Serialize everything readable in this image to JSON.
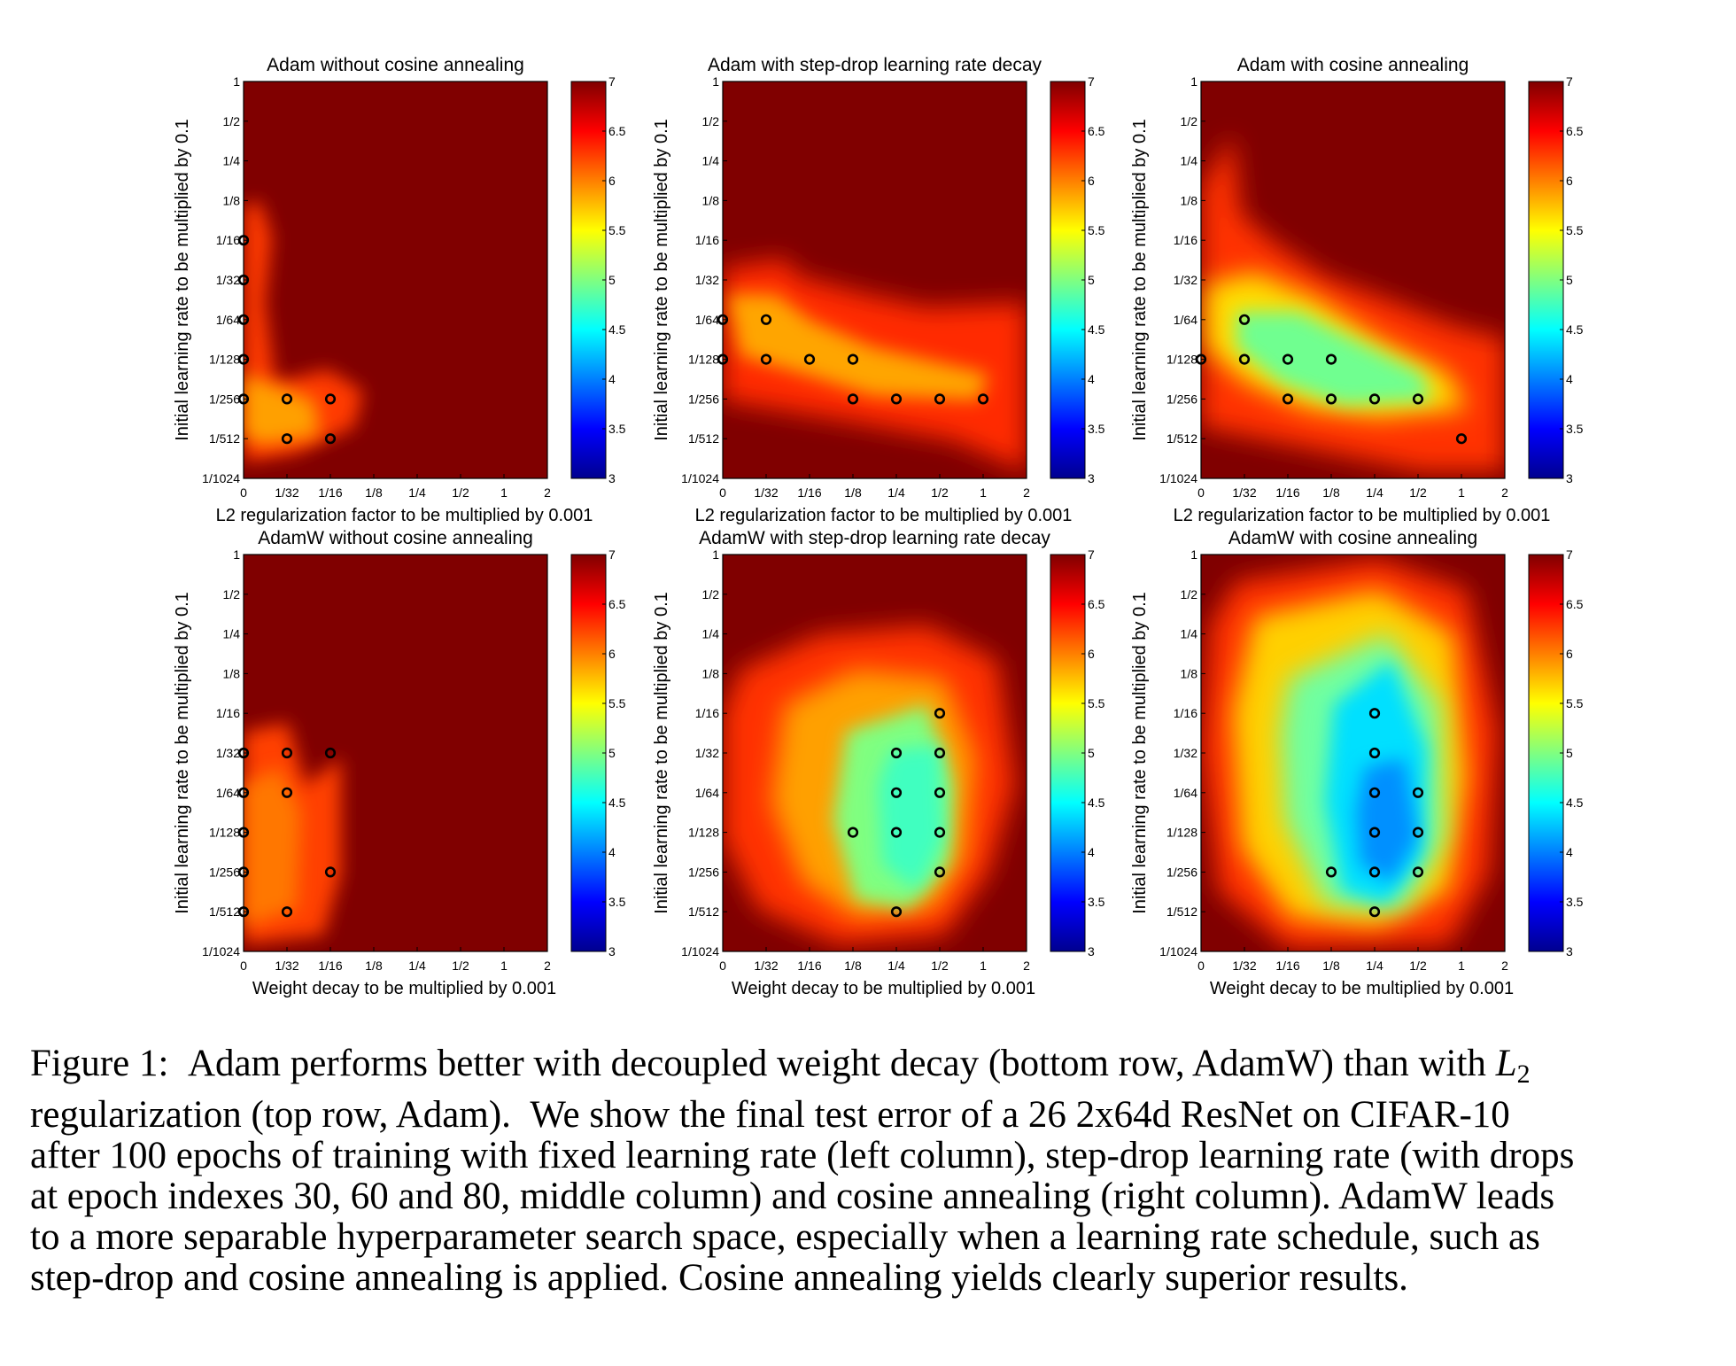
{
  "figure": {
    "y_ticks": [
      "1",
      "1/2",
      "1/4",
      "1/8",
      "1/16",
      "1/32",
      "1/64",
      "1/128",
      "1/256",
      "1/512",
      "1/1024"
    ],
    "x_ticks": [
      "0",
      "1/32",
      "1/16",
      "1/8",
      "1/4",
      "1/2",
      "1",
      "2"
    ],
    "y_label": "Initial learning rate to be multiplied by 0.1",
    "colorbar": {
      "min": 3,
      "max": 7,
      "ticks": [
        "3",
        "3.5",
        "4",
        "4.5",
        "5",
        "5.5",
        "6",
        "6.5",
        "7"
      ]
    },
    "panels": [
      {
        "title": "Adam without cosine annealing",
        "x_label": "L2 regularization factor to be multiplied by 0.001",
        "type": "heatmap",
        "best_settings": [
          [
            0,
            4
          ],
          [
            0,
            5
          ],
          [
            0,
            6
          ],
          [
            0,
            7
          ],
          [
            0,
            8
          ],
          [
            1,
            8
          ],
          [
            2,
            8
          ],
          [
            1,
            9
          ],
          [
            2,
            9
          ]
        ]
      },
      {
        "title": "Adam with step-drop learning rate decay",
        "x_label": "L2 regularization factor to be multiplied by 0.001",
        "type": "heatmap",
        "best_settings": [
          [
            0,
            6
          ],
          [
            1,
            6
          ],
          [
            0,
            7
          ],
          [
            1,
            7
          ],
          [
            2,
            7
          ],
          [
            3,
            7
          ],
          [
            3,
            8
          ],
          [
            4,
            8
          ],
          [
            5,
            8
          ],
          [
            6,
            8
          ]
        ]
      },
      {
        "title": "Adam with cosine annealing",
        "x_label": "L2 regularization factor to be multiplied by 0.001",
        "type": "heatmap",
        "best_settings": [
          [
            1,
            6
          ],
          [
            0,
            7
          ],
          [
            1,
            7
          ],
          [
            2,
            7
          ],
          [
            3,
            7
          ],
          [
            2,
            8
          ],
          [
            3,
            8
          ],
          [
            4,
            8
          ],
          [
            5,
            8
          ],
          [
            6,
            9
          ]
        ]
      },
      {
        "title": "AdamW without cosine annealing",
        "x_label": "Weight decay to be multiplied by 0.001",
        "type": "heatmap",
        "best_settings": [
          [
            0,
            5
          ],
          [
            1,
            5
          ],
          [
            2,
            5
          ],
          [
            0,
            6
          ],
          [
            1,
            6
          ],
          [
            0,
            7
          ],
          [
            0,
            8
          ],
          [
            2,
            8
          ],
          [
            0,
            9
          ],
          [
            1,
            9
          ]
        ]
      },
      {
        "title": "AdamW with step-drop learning rate decay",
        "x_label": "Weight decay to be multiplied by 0.001",
        "type": "heatmap",
        "best_settings": [
          [
            5,
            4
          ],
          [
            4,
            5
          ],
          [
            5,
            5
          ],
          [
            4,
            6
          ],
          [
            5,
            6
          ],
          [
            3,
            7
          ],
          [
            4,
            7
          ],
          [
            5,
            7
          ],
          [
            5,
            8
          ],
          [
            4,
            9
          ]
        ]
      },
      {
        "title": "AdamW with cosine annealing",
        "x_label": "Weight decay to be multiplied by 0.001",
        "type": "heatmap",
        "best_settings": [
          [
            4,
            4
          ],
          [
            4,
            5
          ],
          [
            4,
            6
          ],
          [
            5,
            6
          ],
          [
            4,
            7
          ],
          [
            5,
            7
          ],
          [
            3,
            8
          ],
          [
            4,
            8
          ],
          [
            5,
            8
          ],
          [
            4,
            9
          ]
        ]
      }
    ]
  },
  "caption": {
    "lines": [
      "Figure 1:  Adam performs better with decoupled weight decay (bottom row, AdamW) than with ",
      "regularization (top row, Adam).  We show the final test error of a 26 2x64d ResNet on CIFAR-10",
      "after 100 epochs of training with fixed learning rate (left column), step-drop learning rate (with drops",
      "at epoch indexes 30, 60 and 80, middle column) and cosine annealing (right column). AdamW leads",
      "to a more separable hyperparameter search space, especially when a learning rate schedule, such as",
      "step-drop and cosine annealing is applied. Cosine annealing yields clearly superior results."
    ],
    "l2_symbol": "L",
    "l2_sub": "2"
  }
}
